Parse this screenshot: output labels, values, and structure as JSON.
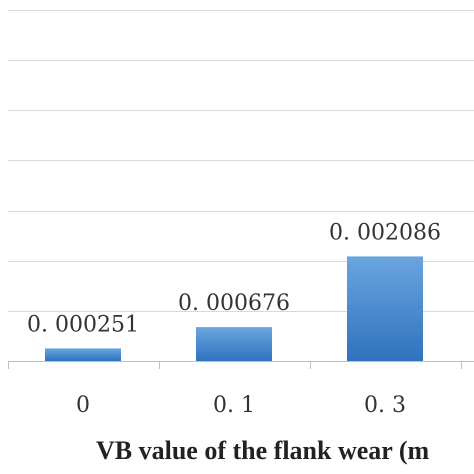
{
  "chart_data": {
    "type": "bar",
    "categories": [
      "0",
      "0. 1",
      "0. 3"
    ],
    "values": [
      0.000251,
      0.000676,
      0.002086
    ],
    "data_labels": [
      "0. 000251",
      "0. 000676",
      "0. 002086"
    ],
    "xlabel": "VB value of the flank wear (m",
    "ylim": [
      0,
      0.007
    ],
    "grid": true,
    "legend": "none",
    "colors": {
      "bar_top": "#6aa5e0",
      "bar_bottom": "#2f72bd",
      "grid": "#d9d9d9",
      "axis": "#bfbfbf",
      "text": "#333333"
    }
  }
}
